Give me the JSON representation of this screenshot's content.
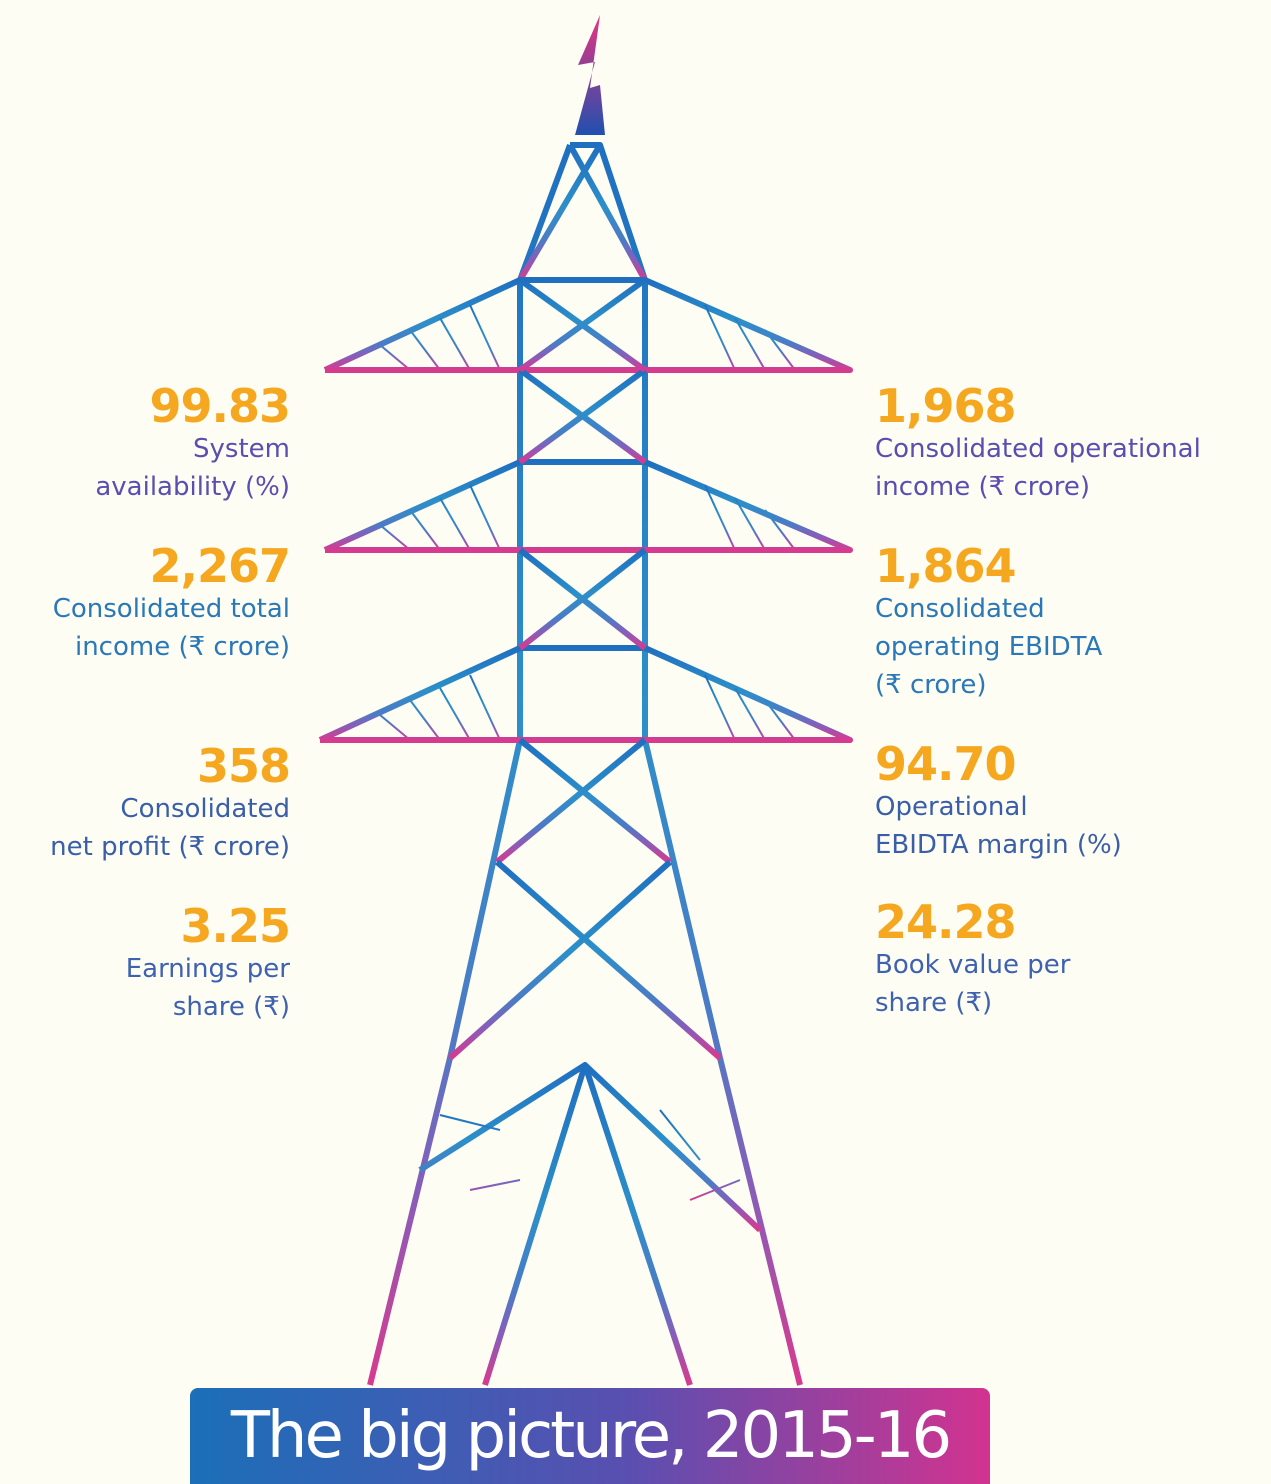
{
  "title": "The big picture, 2015-16",
  "left": [
    {
      "value": "99.83",
      "label": [
        "System",
        "availability (%)"
      ]
    },
    {
      "value": "2,267",
      "label": [
        "Consolidated total",
        "income (₹ crore)"
      ]
    },
    {
      "value": "358",
      "label": [
        "Consolidated",
        "net profit (₹ crore)"
      ]
    },
    {
      "value": "3.25",
      "label": [
        "Earnings per",
        "share (₹)"
      ]
    }
  ],
  "right": [
    {
      "value": "1,968",
      "label": [
        "Consolidated operational",
        "income (₹ crore)"
      ]
    },
    {
      "value": "1,864",
      "label": [
        "Consolidated",
        "operating EBIDTA",
        "(₹ crore)"
      ]
    },
    {
      "value": "94.70",
      "label": [
        "Operational",
        "EBIDTA margin (%)"
      ]
    },
    {
      "value": "24.28",
      "label": [
        "Book value per",
        "share (₹)"
      ]
    }
  ]
}
